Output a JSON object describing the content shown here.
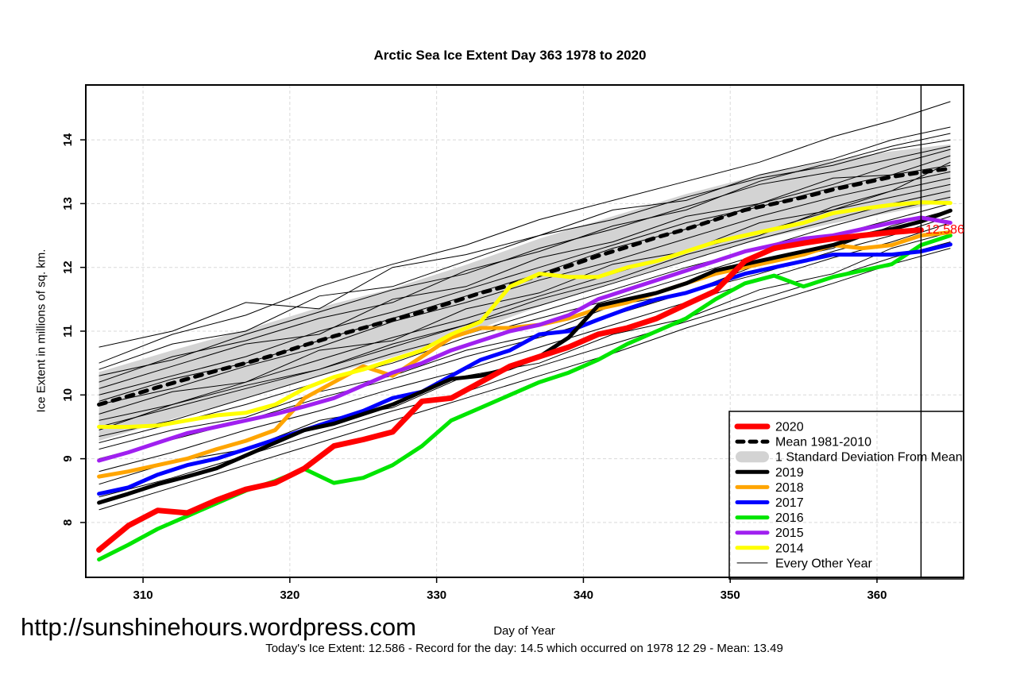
{
  "header": {
    "title": "Arctic Sea Ice Extent Day 363 1978 to 2020"
  },
  "axes": {
    "x_label": "Day of Year",
    "y_label": "Ice Extent in millions of sq. km.",
    "x_ticks": [
      310,
      320,
      330,
      340,
      350,
      360
    ],
    "y_ticks": [
      8,
      9,
      10,
      11,
      12,
      13,
      14
    ]
  },
  "annotation": {
    "current_value_label": "12.586",
    "marker_day": 363
  },
  "footer": {
    "url": "http://sunshinehours.wordpress.com",
    "caption": "Today's Ice Extent: 12.586  - Record for the day: 14.5 which occurred on 1978 12 29  - Mean: 13.49"
  },
  "legend": {
    "entries": [
      {
        "label": "2020",
        "swatch": "thick",
        "color": "#FF0000",
        "width": 7
      },
      {
        "label": "Mean 1981-2010",
        "swatch": "dashed",
        "color": "#000000",
        "width": 5
      },
      {
        "label": "1 Standard Deviation From Mean",
        "swatch": "band",
        "color": "#D3D3D3"
      },
      {
        "label": "2019",
        "swatch": "thick",
        "color": "#000000",
        "width": 5
      },
      {
        "label": "2018",
        "swatch": "thick",
        "color": "#FFA500",
        "width": 5
      },
      {
        "label": "2017",
        "swatch": "thick",
        "color": "#0000FF",
        "width": 5
      },
      {
        "label": "2016",
        "swatch": "thick",
        "color": "#00E500",
        "width": 5
      },
      {
        "label": "2015",
        "swatch": "thick",
        "color": "#A020F0",
        "width": 5
      },
      {
        "label": "2014",
        "swatch": "thick",
        "color": "#FFFF00",
        "width": 5
      },
      {
        "label": "Every Other Year",
        "swatch": "thin",
        "color": "#000000",
        "width": 1
      }
    ]
  },
  "chart_data": {
    "type": "line",
    "title": "Arctic Sea Ice Extent Day 363 1978 to 2020",
    "xlabel": "Day of Year",
    "ylabel": "Ice Extent in millions of sq. km.",
    "x_ticks": [
      310,
      320,
      330,
      340,
      350,
      360
    ],
    "y_ticks": [
      8,
      9,
      10,
      11,
      12,
      13,
      14
    ],
    "xlim": [
      306.1,
      365.9
    ],
    "ylim": [
      7.14,
      14.86
    ],
    "grid": true,
    "legend_position": "bottom-right",
    "marker_day": 363,
    "today_value": 12.586,
    "record_value": 14.5,
    "record_date": "1978 12 29",
    "mean_value_day363": 13.49,
    "grid_color": "#D9D9D9",
    "band_color": "#D3D3D3",
    "days": [
      307,
      309,
      311,
      313,
      315,
      317,
      319,
      321,
      323,
      325,
      327,
      329,
      331,
      333,
      335,
      337,
      339,
      341,
      343,
      345,
      347,
      349,
      351,
      353,
      355,
      357,
      359,
      361,
      363,
      365
    ],
    "series": [
      {
        "name": "2016",
        "color": "#00E500",
        "width": 5,
        "values": [
          7.42,
          7.65,
          7.9,
          8.1,
          8.3,
          8.5,
          8.65,
          8.84,
          8.62,
          8.7,
          8.9,
          9.2,
          9.6,
          9.8,
          10.0,
          10.2,
          10.35,
          10.55,
          10.8,
          11.0,
          11.2,
          11.5,
          11.75,
          11.87,
          11.7,
          11.85,
          11.95,
          12.05,
          12.35,
          12.5
        ]
      },
      {
        "name": "2017",
        "color": "#0000FF",
        "width": 5,
        "values": [
          8.45,
          8.55,
          8.75,
          8.9,
          9.0,
          9.15,
          9.3,
          9.45,
          9.6,
          9.75,
          9.95,
          10.05,
          10.3,
          10.55,
          10.7,
          10.95,
          11.0,
          11.18,
          11.35,
          11.5,
          11.6,
          11.75,
          11.9,
          12.0,
          12.1,
          12.2,
          12.2,
          12.2,
          12.25,
          12.36
        ]
      },
      {
        "name": "2018",
        "color": "#FFA500",
        "width": 5,
        "values": [
          8.72,
          8.8,
          8.9,
          9.0,
          9.15,
          9.28,
          9.45,
          9.95,
          10.2,
          10.45,
          10.3,
          10.6,
          10.9,
          11.05,
          11.05,
          11.1,
          11.2,
          11.35,
          11.45,
          11.6,
          11.75,
          11.9,
          12.0,
          12.1,
          12.2,
          12.35,
          12.3,
          12.35,
          12.5,
          12.55
        ]
      },
      {
        "name": "2019",
        "color": "#000000",
        "width": 5,
        "values": [
          8.31,
          8.45,
          8.6,
          8.72,
          8.85,
          9.05,
          9.25,
          9.45,
          9.55,
          9.7,
          9.85,
          10.05,
          10.25,
          10.3,
          10.42,
          10.6,
          10.9,
          11.4,
          11.5,
          11.6,
          11.75,
          11.95,
          12.05,
          12.15,
          12.25,
          12.35,
          12.5,
          12.6,
          12.72,
          12.89
        ]
      },
      {
        "name": "2015",
        "color": "#A020F0",
        "width": 5,
        "values": [
          8.97,
          9.1,
          9.25,
          9.4,
          9.5,
          9.6,
          9.7,
          9.82,
          9.95,
          10.15,
          10.35,
          10.5,
          10.7,
          10.85,
          11.0,
          11.1,
          11.25,
          11.5,
          11.65,
          11.8,
          11.95,
          12.1,
          12.25,
          12.35,
          12.45,
          12.5,
          12.6,
          12.7,
          12.78,
          12.7
        ]
      },
      {
        "name": "2014",
        "color": "#FFFF00",
        "width": 5,
        "values": [
          9.5,
          9.5,
          9.52,
          9.6,
          9.68,
          9.72,
          9.85,
          10.1,
          10.28,
          10.4,
          10.55,
          10.7,
          10.95,
          11.15,
          11.7,
          11.9,
          11.85,
          11.85,
          12.0,
          12.1,
          12.25,
          12.4,
          12.5,
          12.6,
          12.7,
          12.85,
          12.92,
          12.98,
          13.02,
          13.01
        ]
      },
      {
        "name": "2020",
        "color": "#FF0000",
        "width": 7,
        "values": [
          7.57,
          7.95,
          8.19,
          8.15,
          8.35,
          8.52,
          8.62,
          8.85,
          9.2,
          9.3,
          9.42,
          9.9,
          9.95,
          10.2,
          10.45,
          10.6,
          10.75,
          10.95,
          11.05,
          11.2,
          11.42,
          11.63,
          12.1,
          12.3,
          12.38,
          12.45,
          12.5,
          12.55,
          12.586
        ]
      }
    ],
    "mean_series": {
      "name": "Mean 1981-2010",
      "color": "#000000",
      "width": 5,
      "dash": "9 9",
      "values": [
        9.85,
        9.98,
        10.12,
        10.25,
        10.38,
        10.5,
        10.63,
        10.78,
        10.92,
        11.05,
        11.18,
        11.3,
        11.45,
        11.6,
        11.72,
        11.88,
        12.02,
        12.18,
        12.32,
        12.47,
        12.6,
        12.75,
        12.9,
        13.0,
        13.1,
        13.22,
        13.32,
        13.42,
        13.49,
        13.55
      ]
    },
    "band": {
      "name": "1 Standard Deviation From Mean",
      "days": [
        307,
        312,
        317,
        322,
        327,
        332,
        337,
        342,
        347,
        352,
        357,
        361,
        365
      ],
      "upper": [
        10.36,
        10.7,
        11.02,
        11.37,
        11.67,
        12.04,
        12.45,
        12.8,
        13.15,
        13.45,
        13.68,
        13.82,
        13.93
      ],
      "lower": [
        9.28,
        9.62,
        9.94,
        10.29,
        10.59,
        10.96,
        11.39,
        11.76,
        12.11,
        12.44,
        12.69,
        12.86,
        13.05
      ]
    },
    "background_lines": {
      "name": "Every Other Year",
      "color": "#000000",
      "width": 1,
      "days": [
        307,
        312,
        317,
        322,
        327,
        332,
        337,
        342,
        347,
        352,
        357,
        361,
        365
      ],
      "lines": [
        [
          10.5,
          10.95,
          11.25,
          11.7,
          12.05,
          12.35,
          12.75,
          13.05,
          13.35,
          13.65,
          14.05,
          14.3,
          14.6
        ],
        [
          10.75,
          11.0,
          11.45,
          11.35,
          12.0,
          12.2,
          12.5,
          12.9,
          13.05,
          13.45,
          13.7,
          14.0,
          14.2
        ],
        [
          10.4,
          10.8,
          11.0,
          11.55,
          11.7,
          12.1,
          12.5,
          12.75,
          13.1,
          13.4,
          13.6,
          13.85,
          14.0
        ],
        [
          10.3,
          10.55,
          10.95,
          11.3,
          11.65,
          11.9,
          12.3,
          12.6,
          12.95,
          13.3,
          13.5,
          13.7,
          13.9
        ],
        [
          10.2,
          10.6,
          10.85,
          11.2,
          11.45,
          11.95,
          12.25,
          12.65,
          12.9,
          13.35,
          13.65,
          13.9,
          14.1
        ],
        [
          10.1,
          10.45,
          10.8,
          10.95,
          11.5,
          11.7,
          12.15,
          12.4,
          12.8,
          13.0,
          13.4,
          13.45,
          13.75
        ],
        [
          10.0,
          10.3,
          10.6,
          11.0,
          11.3,
          11.65,
          12.0,
          12.35,
          12.7,
          12.95,
          13.25,
          13.45,
          13.6
        ],
        [
          9.9,
          10.25,
          10.5,
          10.85,
          11.2,
          11.55,
          11.9,
          12.3,
          12.6,
          13.0,
          13.3,
          13.6,
          13.85
        ],
        [
          9.85,
          10.1,
          10.45,
          10.75,
          11.15,
          11.45,
          11.8,
          12.1,
          12.45,
          12.8,
          13.1,
          13.3,
          13.5
        ],
        [
          9.7,
          10.05,
          10.2,
          10.7,
          10.85,
          11.35,
          11.6,
          12.05,
          12.25,
          12.7,
          12.9,
          13.2,
          13.4
        ],
        [
          9.6,
          9.85,
          10.2,
          10.55,
          10.9,
          11.2,
          11.55,
          11.9,
          12.25,
          12.55,
          12.9,
          13.1,
          13.3
        ],
        [
          9.5,
          9.8,
          10.1,
          10.4,
          10.75,
          11.1,
          11.4,
          11.75,
          12.1,
          12.45,
          12.75,
          13.0,
          13.2
        ],
        [
          9.45,
          9.85,
          10.15,
          10.4,
          10.8,
          11.1,
          11.5,
          11.8,
          12.2,
          12.5,
          12.95,
          13.2,
          13.65
        ],
        [
          9.35,
          9.6,
          9.95,
          10.3,
          10.65,
          10.95,
          11.3,
          11.65,
          12.0,
          12.3,
          12.65,
          12.9,
          13.1
        ],
        [
          9.25,
          9.55,
          9.85,
          10.2,
          10.5,
          10.9,
          11.2,
          11.5,
          11.85,
          12.2,
          12.5,
          12.75,
          13.0
        ],
        [
          9.15,
          9.45,
          9.65,
          10.05,
          10.3,
          10.7,
          10.95,
          11.4,
          11.6,
          12.05,
          12.3,
          12.65,
          12.9
        ],
        [
          9.0,
          9.3,
          9.6,
          9.95,
          10.25,
          10.6,
          10.9,
          11.25,
          11.6,
          11.9,
          12.25,
          12.5,
          12.8
        ],
        [
          8.8,
          9.1,
          9.45,
          9.75,
          10.1,
          10.4,
          10.75,
          11.1,
          11.45,
          11.8,
          12.15,
          12.4,
          12.7
        ],
        [
          8.6,
          8.95,
          9.15,
          9.6,
          9.8,
          10.3,
          10.5,
          10.95,
          11.2,
          11.65,
          11.9,
          12.3,
          12.55
        ],
        [
          8.4,
          8.7,
          9.05,
          9.4,
          9.75,
          10.05,
          10.45,
          10.8,
          11.15,
          11.5,
          11.85,
          12.15,
          12.4
        ],
        [
          8.2,
          8.55,
          8.9,
          9.25,
          9.6,
          9.95,
          10.3,
          10.65,
          11.05,
          11.4,
          11.75,
          12.05,
          12.3
        ]
      ]
    }
  }
}
